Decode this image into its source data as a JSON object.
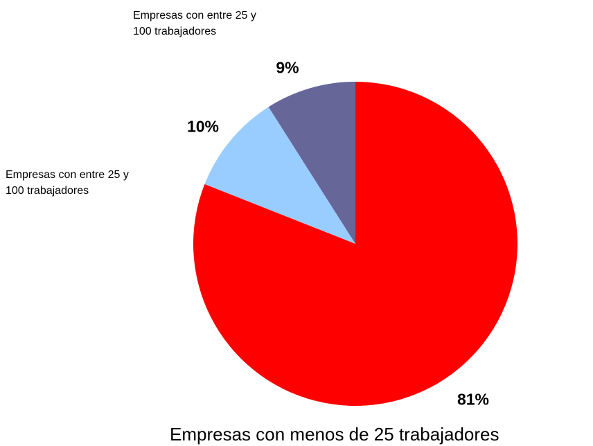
{
  "chart_data": {
    "type": "pie",
    "categories": [
      "Empresas con menos de 25 trabajadores",
      "Empresas con entre 25 y 100 trabajadores",
      "Empresas con entre 25 y 100 trabajadores"
    ],
    "values": [
      81,
      10,
      9
    ],
    "value_labels": [
      "81%",
      "10%",
      "9%"
    ],
    "colors": [
      "#ff0000",
      "#99ccff",
      "#666699"
    ]
  }
}
